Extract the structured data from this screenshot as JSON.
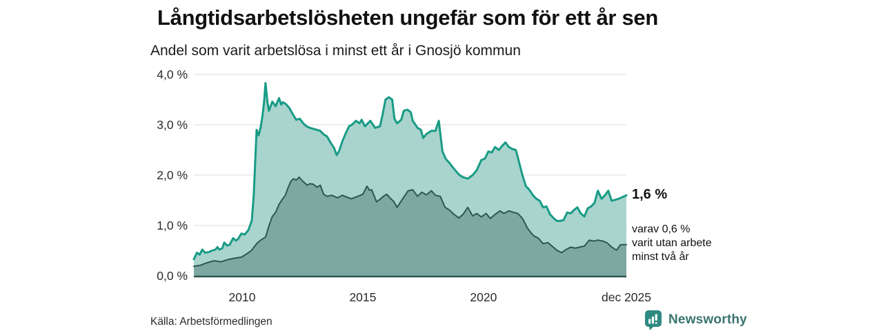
{
  "header": {
    "title": "Långtidsarbetslösheten ungefär som för ett år sen",
    "subtitle": "Andel som varit arbetslösa i minst ett år i Gnosjö kommun"
  },
  "chart_data": {
    "type": "area",
    "title": "Långtidsarbetslösheten ungefär som för ett år sen",
    "subtitle": "Andel som varit arbetslösa i minst ett år i Gnosjö kommun",
    "xlabel": "",
    "ylabel": "",
    "x_unit": "decimal_year",
    "xlim": [
      2008.0,
      2025.92
    ],
    "ylim": [
      0,
      4
    ],
    "grid": "horizontal",
    "grid_color": "#dcdcdc",
    "baseline_color": "#2e554f",
    "yticks": [
      {
        "v": 0,
        "label": "0,0 %"
      },
      {
        "v": 1,
        "label": "1,0 %"
      },
      {
        "v": 2,
        "label": "2,0 %"
      },
      {
        "v": 3,
        "label": "3,0 %"
      },
      {
        "v": 4,
        "label": "4,0 %"
      }
    ],
    "xticks": [
      {
        "v": 2010,
        "label": "2010"
      },
      {
        "v": 2015,
        "label": "2015"
      },
      {
        "v": 2020,
        "label": "2020"
      },
      {
        "v": 2025.92,
        "label": "dec 2025"
      }
    ],
    "series": [
      {
        "name": "Andel arbetslösa minst ett år",
        "line_color": "#189b85",
        "fill_color": "#a8d4cd",
        "line_width": 3,
        "end_value_label": "1,6 %",
        "points": [
          [
            2008.0,
            0.33
          ],
          [
            2008.13,
            0.46
          ],
          [
            2008.24,
            0.42
          ],
          [
            2008.35,
            0.52
          ],
          [
            2008.47,
            0.46
          ],
          [
            2008.61,
            0.47
          ],
          [
            2008.75,
            0.5
          ],
          [
            2008.89,
            0.52
          ],
          [
            2008.98,
            0.57
          ],
          [
            2009.06,
            0.52
          ],
          [
            2009.18,
            0.55
          ],
          [
            2009.26,
            0.66
          ],
          [
            2009.38,
            0.6
          ],
          [
            2009.49,
            0.62
          ],
          [
            2009.63,
            0.75
          ],
          [
            2009.74,
            0.7
          ],
          [
            2009.83,
            0.73
          ],
          [
            2009.97,
            0.84
          ],
          [
            2010.11,
            0.82
          ],
          [
            2010.26,
            0.91
          ],
          [
            2010.4,
            1.1
          ],
          [
            2010.48,
            1.6
          ],
          [
            2010.6,
            2.9
          ],
          [
            2010.68,
            2.79
          ],
          [
            2010.77,
            2.95
          ],
          [
            2010.85,
            3.2
          ],
          [
            2010.91,
            3.45
          ],
          [
            2010.97,
            3.83
          ],
          [
            2011.05,
            3.45
          ],
          [
            2011.11,
            3.28
          ],
          [
            2011.25,
            3.46
          ],
          [
            2011.39,
            3.37
          ],
          [
            2011.53,
            3.53
          ],
          [
            2011.62,
            3.4
          ],
          [
            2011.68,
            3.45
          ],
          [
            2011.82,
            3.41
          ],
          [
            2011.96,
            3.33
          ],
          [
            2012.1,
            3.21
          ],
          [
            2012.24,
            3.1
          ],
          [
            2012.39,
            3.12
          ],
          [
            2012.53,
            3.03
          ],
          [
            2012.67,
            2.97
          ],
          [
            2012.81,
            2.94
          ],
          [
            2012.95,
            2.92
          ],
          [
            2013.1,
            2.9
          ],
          [
            2013.24,
            2.88
          ],
          [
            2013.38,
            2.81
          ],
          [
            2013.52,
            2.77
          ],
          [
            2013.66,
            2.65
          ],
          [
            2013.81,
            2.54
          ],
          [
            2013.92,
            2.4
          ],
          [
            2014.01,
            2.47
          ],
          [
            2014.15,
            2.67
          ],
          [
            2014.29,
            2.83
          ],
          [
            2014.43,
            2.97
          ],
          [
            2014.57,
            3.01
          ],
          [
            2014.72,
            3.08
          ],
          [
            2014.86,
            3.03
          ],
          [
            2014.95,
            3.1
          ],
          [
            2015.09,
            2.97
          ],
          [
            2015.31,
            3.08
          ],
          [
            2015.51,
            2.94
          ],
          [
            2015.71,
            2.97
          ],
          [
            2015.82,
            3.2
          ],
          [
            2015.94,
            3.5
          ],
          [
            2016.08,
            3.55
          ],
          [
            2016.22,
            3.5
          ],
          [
            2016.31,
            3.12
          ],
          [
            2016.42,
            3.03
          ],
          [
            2016.59,
            3.1
          ],
          [
            2016.7,
            3.28
          ],
          [
            2016.85,
            3.3
          ],
          [
            2016.99,
            3.25
          ],
          [
            2017.07,
            3.08
          ],
          [
            2017.27,
            2.94
          ],
          [
            2017.41,
            2.9
          ],
          [
            2017.5,
            2.74
          ],
          [
            2017.64,
            2.82
          ],
          [
            2017.84,
            2.88
          ],
          [
            2018.01,
            2.88
          ],
          [
            2018.15,
            3.08
          ],
          [
            2018.3,
            2.47
          ],
          [
            2018.44,
            2.32
          ],
          [
            2018.58,
            2.25
          ],
          [
            2018.72,
            2.16
          ],
          [
            2018.86,
            2.08
          ],
          [
            2019.01,
            2.0
          ],
          [
            2019.15,
            1.96
          ],
          [
            2019.35,
            1.93
          ],
          [
            2019.55,
            2.0
          ],
          [
            2019.72,
            2.1
          ],
          [
            2019.91,
            2.3
          ],
          [
            2020.06,
            2.33
          ],
          [
            2020.2,
            2.47
          ],
          [
            2020.34,
            2.45
          ],
          [
            2020.48,
            2.56
          ],
          [
            2020.63,
            2.5
          ],
          [
            2020.77,
            2.58
          ],
          [
            2020.91,
            2.65
          ],
          [
            2021.05,
            2.56
          ],
          [
            2021.19,
            2.52
          ],
          [
            2021.34,
            2.5
          ],
          [
            2021.48,
            2.25
          ],
          [
            2021.62,
            1.99
          ],
          [
            2021.76,
            1.78
          ],
          [
            2021.9,
            1.71
          ],
          [
            2022.05,
            1.6
          ],
          [
            2022.19,
            1.53
          ],
          [
            2022.33,
            1.49
          ],
          [
            2022.47,
            1.36
          ],
          [
            2022.61,
            1.38
          ],
          [
            2022.76,
            1.22
          ],
          [
            2022.9,
            1.15
          ],
          [
            2023.04,
            1.09
          ],
          [
            2023.18,
            1.09
          ],
          [
            2023.32,
            1.11
          ],
          [
            2023.47,
            1.26
          ],
          [
            2023.61,
            1.24
          ],
          [
            2023.75,
            1.31
          ],
          [
            2023.89,
            1.36
          ],
          [
            2024.03,
            1.24
          ],
          [
            2024.18,
            1.18
          ],
          [
            2024.32,
            1.34
          ],
          [
            2024.46,
            1.38
          ],
          [
            2024.6,
            1.45
          ],
          [
            2024.74,
            1.69
          ],
          [
            2024.89,
            1.53
          ],
          [
            2025.03,
            1.6
          ],
          [
            2025.17,
            1.69
          ],
          [
            2025.31,
            1.49
          ],
          [
            2025.45,
            1.51
          ],
          [
            2025.6,
            1.53
          ],
          [
            2025.74,
            1.56
          ],
          [
            2025.92,
            1.6
          ]
        ]
      },
      {
        "name": "Andel utan arbete minst två år",
        "line_color": "#2e554f",
        "fill_color": "#7ca8a1",
        "line_width": 2,
        "end_value_label": "0,6 %",
        "points": [
          [
            2008.0,
            0.19
          ],
          [
            2008.27,
            0.21
          ],
          [
            2008.55,
            0.26
          ],
          [
            2008.84,
            0.3
          ],
          [
            2009.12,
            0.28
          ],
          [
            2009.4,
            0.32
          ],
          [
            2009.69,
            0.35
          ],
          [
            2009.97,
            0.37
          ],
          [
            2010.2,
            0.44
          ],
          [
            2010.4,
            0.51
          ],
          [
            2010.6,
            0.64
          ],
          [
            2010.77,
            0.71
          ],
          [
            2010.97,
            0.77
          ],
          [
            2011.11,
            0.99
          ],
          [
            2011.25,
            1.18
          ],
          [
            2011.39,
            1.26
          ],
          [
            2011.53,
            1.42
          ],
          [
            2011.68,
            1.53
          ],
          [
            2011.79,
            1.6
          ],
          [
            2011.9,
            1.75
          ],
          [
            2012.02,
            1.88
          ],
          [
            2012.13,
            1.93
          ],
          [
            2012.24,
            1.9
          ],
          [
            2012.36,
            1.96
          ],
          [
            2012.47,
            1.9
          ],
          [
            2012.58,
            1.85
          ],
          [
            2012.7,
            1.8
          ],
          [
            2012.81,
            1.83
          ],
          [
            2012.95,
            1.82
          ],
          [
            2013.1,
            1.76
          ],
          [
            2013.24,
            1.8
          ],
          [
            2013.38,
            1.62
          ],
          [
            2013.52,
            1.58
          ],
          [
            2013.72,
            1.6
          ],
          [
            2013.95,
            1.55
          ],
          [
            2014.15,
            1.6
          ],
          [
            2014.52,
            1.53
          ],
          [
            2014.8,
            1.58
          ],
          [
            2015.0,
            1.62
          ],
          [
            2015.17,
            1.78
          ],
          [
            2015.28,
            1.7
          ],
          [
            2015.37,
            1.71
          ],
          [
            2015.57,
            1.47
          ],
          [
            2015.71,
            1.52
          ],
          [
            2015.85,
            1.58
          ],
          [
            2015.99,
            1.62
          ],
          [
            2016.16,
            1.53
          ],
          [
            2016.28,
            1.48
          ],
          [
            2016.42,
            1.36
          ],
          [
            2016.65,
            1.53
          ],
          [
            2016.88,
            1.69
          ],
          [
            2017.07,
            1.71
          ],
          [
            2017.27,
            1.58
          ],
          [
            2017.44,
            1.66
          ],
          [
            2017.64,
            1.61
          ],
          [
            2017.84,
            1.69
          ],
          [
            2018.01,
            1.6
          ],
          [
            2018.21,
            1.58
          ],
          [
            2018.41,
            1.36
          ],
          [
            2018.58,
            1.31
          ],
          [
            2018.78,
            1.22
          ],
          [
            2018.98,
            1.15
          ],
          [
            2019.15,
            1.22
          ],
          [
            2019.35,
            1.36
          ],
          [
            2019.55,
            1.19
          ],
          [
            2019.72,
            1.24
          ],
          [
            2019.91,
            1.17
          ],
          [
            2020.11,
            1.24
          ],
          [
            2020.28,
            1.14
          ],
          [
            2020.48,
            1.22
          ],
          [
            2020.68,
            1.29
          ],
          [
            2020.85,
            1.24
          ],
          [
            2021.05,
            1.29
          ],
          [
            2021.25,
            1.26
          ],
          [
            2021.42,
            1.24
          ],
          [
            2021.62,
            1.14
          ],
          [
            2021.82,
            0.95
          ],
          [
            2021.96,
            0.86
          ],
          [
            2022.1,
            0.79
          ],
          [
            2022.27,
            0.75
          ],
          [
            2022.47,
            0.64
          ],
          [
            2022.67,
            0.66
          ],
          [
            2022.84,
            0.59
          ],
          [
            2023.04,
            0.51
          ],
          [
            2023.24,
            0.46
          ],
          [
            2023.41,
            0.52
          ],
          [
            2023.61,
            0.57
          ],
          [
            2023.81,
            0.55
          ],
          [
            2023.98,
            0.57
          ],
          [
            2024.18,
            0.59
          ],
          [
            2024.38,
            0.71
          ],
          [
            2024.55,
            0.69
          ],
          [
            2024.74,
            0.71
          ],
          [
            2024.94,
            0.69
          ],
          [
            2025.11,
            0.66
          ],
          [
            2025.31,
            0.57
          ],
          [
            2025.51,
            0.51
          ],
          [
            2025.68,
            0.62
          ],
          [
            2025.92,
            0.62
          ]
        ]
      }
    ]
  },
  "annotations": {
    "primary": "1,6 %",
    "secondary_lines": [
      "varav 0,6 %",
      "varit utan arbete",
      "minst två år"
    ]
  },
  "footer": {
    "source": "Källa: Arbetsförmedlingen",
    "brand": "Newsworthy",
    "brand_color": "#3a7470",
    "brand_icon_color": "#2f8a81"
  }
}
